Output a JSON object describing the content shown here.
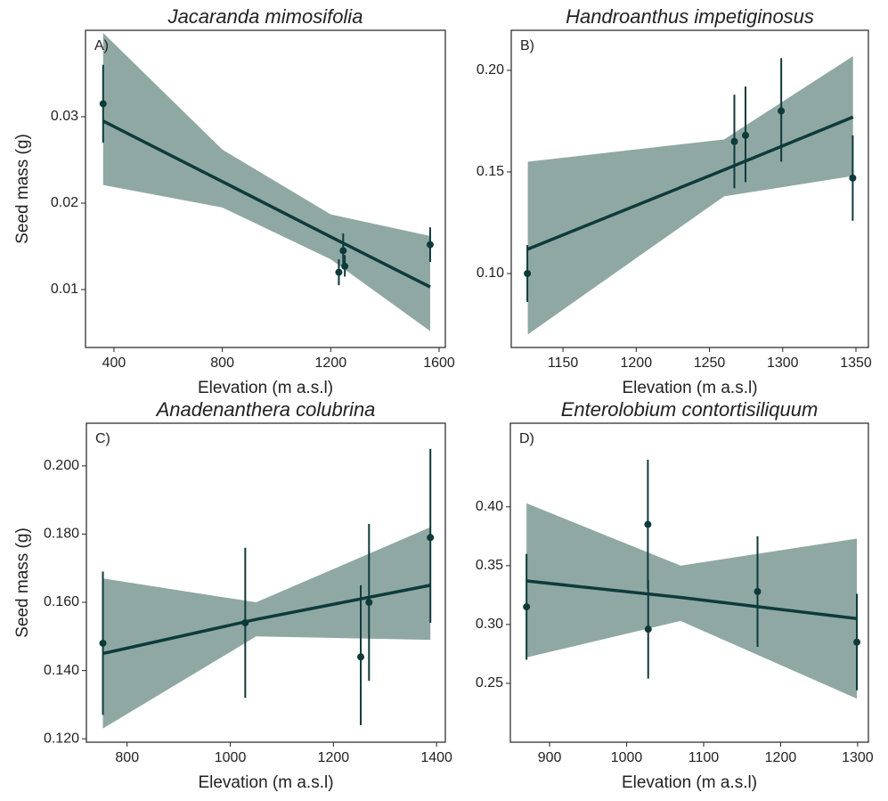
{
  "chart_data": [
    {
      "type": "scatter",
      "title": "Jacaranda mimosifolia",
      "panel_label": "A)",
      "xlabel": "Elevation (m a.s.l)",
      "ylabel": "Seed mass (g)",
      "xlim": [
        295,
        1623
      ],
      "ylim": [
        0.0033,
        0.04
      ],
      "xticks": [
        400,
        800,
        1200,
        1600
      ],
      "yticks": [
        0.01,
        0.02,
        0.03
      ],
      "points": {
        "x": [
          360,
          1230,
          1246,
          1252,
          1567
        ],
        "y": [
          0.0315,
          0.012,
          0.0145,
          0.0127,
          0.0152
        ],
        "y_low": [
          0.027,
          0.0105,
          0.0125,
          0.0115,
          0.0132
        ],
        "y_high": [
          0.036,
          0.0135,
          0.0165,
          0.014,
          0.0172
        ]
      },
      "fit": {
        "x": [
          360,
          800,
          1200,
          1567
        ],
        "y": [
          0.0295,
          0.0225,
          0.0161,
          0.0103
        ],
        "lower": [
          0.0221,
          0.0195,
          0.0135,
          0.0052
        ],
        "upper": [
          0.0397,
          0.0262,
          0.0187,
          0.0162
        ]
      },
      "band_color": "#8fa8a4",
      "line_color": "#0d3b3a"
    },
    {
      "type": "scatter",
      "title": "Handroanthus impetiginosus",
      "panel_label": "B)",
      "xlabel": "Elevation (m a.s.l)",
      "xlim": [
        1114.7,
        1358.5
      ],
      "ylim": [
        0.0636,
        0.2197
      ],
      "xticks": [
        1150,
        1200,
        1250,
        1300,
        1350
      ],
      "yticks": [
        {
          "value": 0.1,
          "label": "0.10"
        },
        0.15,
        {
          "value": 0.2,
          "label": "0.20"
        }
      ],
      "points": {
        "x": [
          1125.7,
          1267,
          1274.6,
          1299,
          1347.8
        ],
        "y": [
          0.1,
          0.165,
          0.168,
          0.18,
          0.147
        ],
        "y_low": [
          0.086,
          0.142,
          0.145,
          0.155,
          0.126
        ],
        "y_high": [
          0.114,
          0.188,
          0.192,
          0.206,
          0.168
        ]
      },
      "fit": {
        "x": [
          1126,
          1260,
          1348
        ],
        "y": [
          0.112,
          0.151,
          0.177
        ],
        "lower": [
          0.07,
          0.138,
          0.148
        ],
        "upper": [
          0.155,
          0.166,
          0.207
        ]
      },
      "band_color": "#8fa8a4",
      "line_color": "#0d3b3a"
    },
    {
      "type": "scatter",
      "title": "Anadenanthera colubrina",
      "panel_label": "C)",
      "xlabel": "Elevation (m a.s.l)",
      "ylabel": "Seed mass (g)",
      "xlim": [
        721,
        1417
      ],
      "ylim": [
        0.119,
        0.2125
      ],
      "xticks": [
        800,
        1000,
        1200,
        1400
      ],
      "yticks": [
        {
          "value": 0.12,
          "label": "0.120"
        },
        {
          "value": 0.14,
          "label": "0.140"
        },
        {
          "value": 0.16,
          "label": "0.160"
        },
        {
          "value": 0.18,
          "label": "0.180"
        },
        {
          "value": 0.2,
          "label": "0.200"
        }
      ],
      "points": {
        "x": [
          753,
          1029,
          1253,
          1269,
          1388
        ],
        "y": [
          0.148,
          0.154,
          0.144,
          0.16,
          0.179
        ],
        "y_low": [
          0.127,
          0.132,
          0.124,
          0.137,
          0.154
        ],
        "y_high": [
          0.169,
          0.176,
          0.165,
          0.183,
          0.205
        ]
      },
      "fit": {
        "x": [
          753,
          1050,
          1388
        ],
        "y": [
          0.145,
          0.155,
          0.165
        ],
        "lower": [
          0.123,
          0.15,
          0.149
        ],
        "upper": [
          0.167,
          0.16,
          0.182
        ]
      },
      "band_color": "#8fa8a4",
      "line_color": "#0d3b3a"
    },
    {
      "type": "scatter",
      "title": "Enterolobium contortisiliquum",
      "panel_label": "D)",
      "xlabel": "Elevation (m a.s.l)",
      "xlim": [
        849,
        1314
      ],
      "ylim": [
        0.2,
        0.471
      ],
      "xticks": [
        900,
        1000,
        1100,
        1200,
        1300
      ],
      "yticks": [
        0.25,
        {
          "value": 0.3,
          "label": "0.30"
        },
        0.35,
        {
          "value": 0.4,
          "label": "0.40"
        }
      ],
      "points": {
        "x": [
          870,
          1027.6,
          1028,
          1170,
          1299
        ],
        "y": [
          0.315,
          0.385,
          0.296,
          0.328,
          0.285
        ],
        "y_low": [
          0.27,
          0.33,
          0.254,
          0.281,
          0.244
        ],
        "y_high": [
          0.36,
          0.44,
          0.338,
          0.375,
          0.326
        ]
      },
      "fit": {
        "x": [
          870,
          1070,
          1299
        ],
        "y": [
          0.337,
          0.323,
          0.305
        ],
        "lower": [
          0.272,
          0.303,
          0.237
        ],
        "upper": [
          0.403,
          0.35,
          0.373
        ]
      },
      "band_color": "#8fa8a4",
      "line_color": "#0d3b3a"
    }
  ]
}
